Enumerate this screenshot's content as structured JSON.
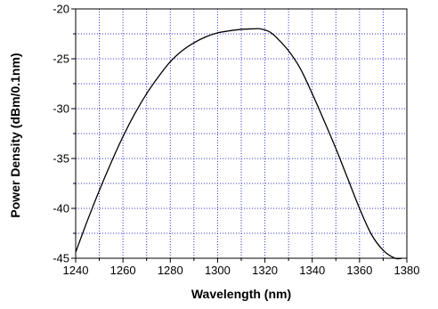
{
  "chart_data": {
    "type": "line",
    "title": "",
    "xlabel": "Wavelength (nm)",
    "ylabel": "Power Density (dBm/0.1nm)",
    "xlim": [
      1240,
      1380
    ],
    "ylim": [
      -45,
      -20
    ],
    "x_ticks": [
      1240,
      1260,
      1280,
      1300,
      1320,
      1340,
      1360,
      1380
    ],
    "y_ticks": [
      -45,
      -40,
      -35,
      -30,
      -25,
      -20
    ],
    "x_tick_labels": [
      "1240",
      "1260",
      "1280",
      "1300",
      "1320",
      "1340",
      "1360",
      "1380"
    ],
    "y_tick_labels": [
      "-45",
      "-40",
      "-35",
      "-30",
      "-25",
      "-20"
    ],
    "x_minor_step": 10,
    "y_minor_step": 2.5,
    "grid": true,
    "legend": "none",
    "colors": {
      "line": "#000000",
      "grid": "#3333cc",
      "frame": "#000000"
    },
    "series": [
      {
        "x": [
          1240,
          1245,
          1250,
          1255,
          1260,
          1265,
          1270,
          1275,
          1280,
          1285,
          1290,
          1295,
          1300,
          1305,
          1310,
          1315,
          1318,
          1322,
          1325,
          1330,
          1335,
          1340,
          1345,
          1350,
          1355,
          1360,
          1365,
          1370,
          1375,
          1378
        ],
        "y": [
          -44.4,
          -41.2,
          -38.2,
          -35.4,
          -32.8,
          -30.5,
          -28.5,
          -26.8,
          -25.3,
          -24.2,
          -23.4,
          -22.8,
          -22.4,
          -22.2,
          -22.05,
          -22.0,
          -22.0,
          -22.3,
          -22.9,
          -24.2,
          -26.0,
          -28.5,
          -31.2,
          -34.0,
          -37.0,
          -40.0,
          -42.6,
          -44.2,
          -45.0,
          -45.0
        ]
      }
    ]
  }
}
